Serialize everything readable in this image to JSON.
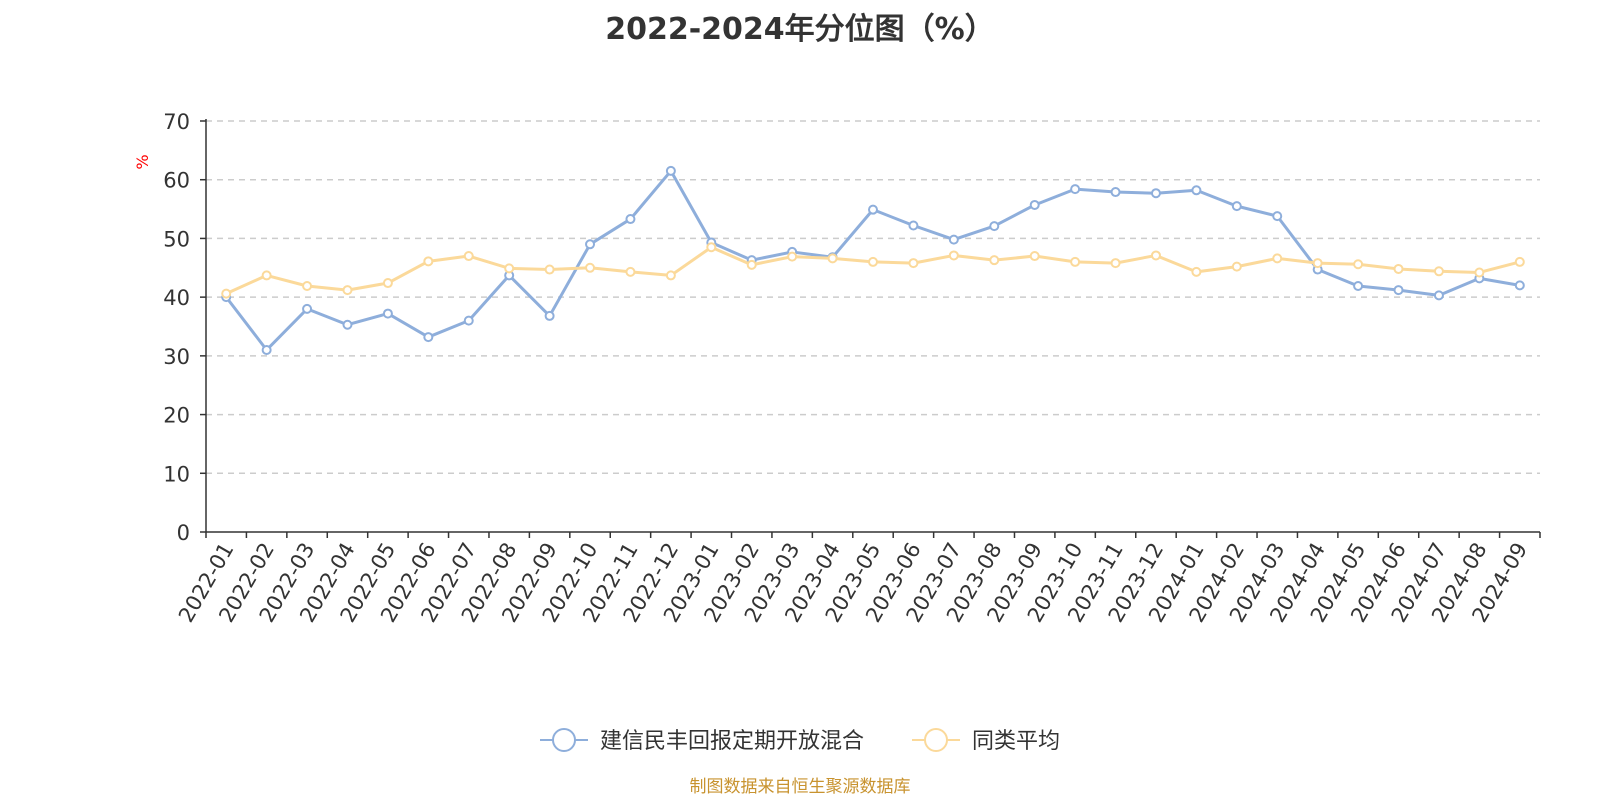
{
  "chart_data": {
    "type": "line",
    "title": "2022-2024年分位图（%）",
    "ylabel": "%",
    "xlabel": "",
    "ylim": [
      0,
      70
    ],
    "yticks": [
      0,
      10,
      20,
      30,
      40,
      50,
      60,
      70
    ],
    "grid": true,
    "legend_position": "bottom",
    "categories": [
      "2022-01",
      "2022-02",
      "2022-03",
      "2022-04",
      "2022-05",
      "2022-06",
      "2022-07",
      "2022-08",
      "2022-09",
      "2022-10",
      "2022-11",
      "2022-12",
      "2023-01",
      "2023-02",
      "2023-03",
      "2023-04",
      "2023-05",
      "2023-06",
      "2023-07",
      "2023-08",
      "2023-09",
      "2023-10",
      "2023-11",
      "2023-12",
      "2024-01",
      "2024-02",
      "2024-03",
      "2024-04",
      "2024-05",
      "2024-06",
      "2024-07",
      "2024-08",
      "2024-09"
    ],
    "series": [
      {
        "name": "建信民丰回报定期开放混合",
        "color": "#8eaedb",
        "values": [
          40,
          31,
          38,
          35.3,
          37.2,
          33.2,
          36,
          43.7,
          36.8,
          49,
          53.3,
          61.5,
          49.3,
          46.3,
          47.7,
          46.8,
          54.9,
          52.2,
          49.8,
          52.1,
          55.7,
          58.4,
          57.9,
          57.7,
          58.2,
          55.5,
          53.8,
          44.7,
          41.9,
          41.2,
          40.3,
          43.2,
          42
        ]
      },
      {
        "name": "同类平均",
        "color": "#fbd99a",
        "values": [
          40.6,
          43.7,
          41.9,
          41.2,
          42.4,
          46.1,
          47,
          44.9,
          44.7,
          45,
          44.3,
          43.7,
          48.5,
          45.5,
          46.9,
          46.6,
          46,
          45.8,
          47.1,
          46.3,
          47,
          46,
          45.8,
          47.1,
          44.3,
          45.2,
          46.6,
          45.8,
          45.6,
          44.8,
          44.4,
          44.2,
          46
        ]
      }
    ]
  },
  "source_note": "制图数据来自恒生聚源数据库",
  "colors": {
    "axis": "#333333",
    "grid": "#cccccc",
    "ylabel": "#ff0000",
    "source": "#c8932f"
  }
}
